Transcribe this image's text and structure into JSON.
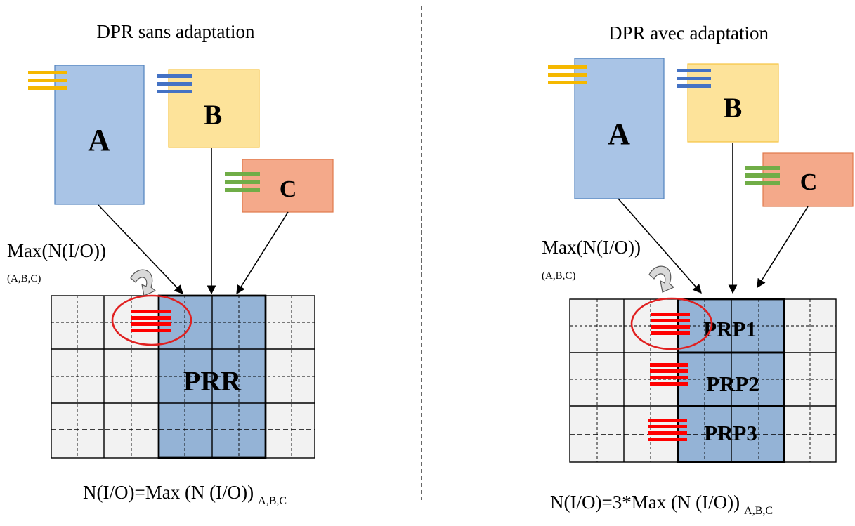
{
  "left": {
    "title": "DPR sans adaptation",
    "module_a": "A",
    "module_b": "B",
    "module_c": "C",
    "max_label": "Max(N(I/O))",
    "max_sub": "(A,B,C)",
    "region_label": "PRR",
    "formula_main": "N(I/O)=Max (N (I/O))",
    "formula_sub": "A,B,C"
  },
  "right": {
    "title": "DPR avec adaptation",
    "module_a": "A",
    "module_b": "B",
    "module_c": "C",
    "max_label": "Max(N(I/O))",
    "max_sub": "(A,B,C)",
    "region_labels": [
      "PRP1",
      "PRP2",
      "PRP3"
    ],
    "formula_main": "N(I/O)=3*Max (N (I/O))",
    "formula_sub": "A,B,C"
  },
  "colors": {
    "module_a_fill": "#a9c4e6",
    "module_a_stroke": "#4f81bd",
    "module_b_fill": "#fde39a",
    "module_b_stroke": "#f6c341",
    "module_c_fill": "#f4a98a",
    "module_c_stroke": "#e0784a",
    "region_fill": "#94b3d6",
    "io_yellow": "#f5b800",
    "io_blue": "#4472c4",
    "io_green": "#70ad47",
    "io_red": "#ff0000",
    "circle_red": "#e02020",
    "grid_bg": "#f2f2f2"
  }
}
